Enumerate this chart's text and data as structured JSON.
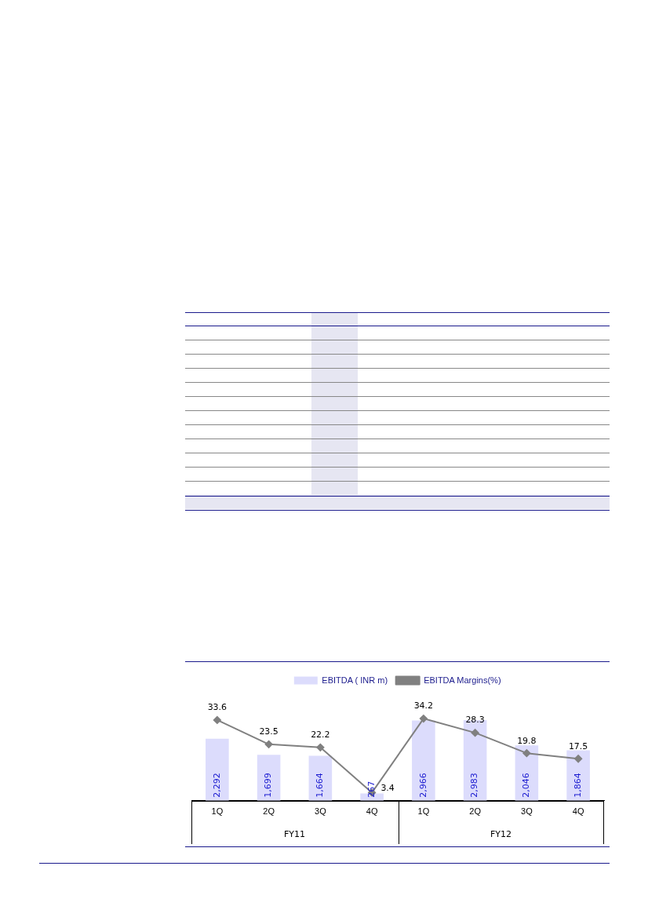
{
  "chart_data": {
    "type": "bar",
    "categories": [
      "1Q",
      "2Q",
      "3Q",
      "4Q",
      "1Q",
      "2Q",
      "3Q",
      "4Q"
    ],
    "series": [
      {
        "name": "EBITDA ( INR m)",
        "color": "#dcdcfc",
        "values": [
          2292,
          1699,
          1664,
          267,
          2966,
          2983,
          2046,
          1864
        ],
        "value_labels": [
          "2,292",
          "1,699",
          "1,664",
          "267",
          "2,966",
          "2,983",
          "2,046",
          "1,864"
        ]
      },
      {
        "name": "EBITDA Margins(%)",
        "type": "line",
        "axis": "y2",
        "color": "#808080",
        "marker": "diamond",
        "values": [
          33.6,
          23.5,
          22.2,
          3.4,
          34.2,
          28.3,
          19.8,
          17.5
        ]
      }
    ],
    "tick_labels": "x",
    "grid": false,
    "legend": "top",
    "data_labels": true,
    "annotations": [
      "FY11",
      "FY12"
    ]
  }
}
